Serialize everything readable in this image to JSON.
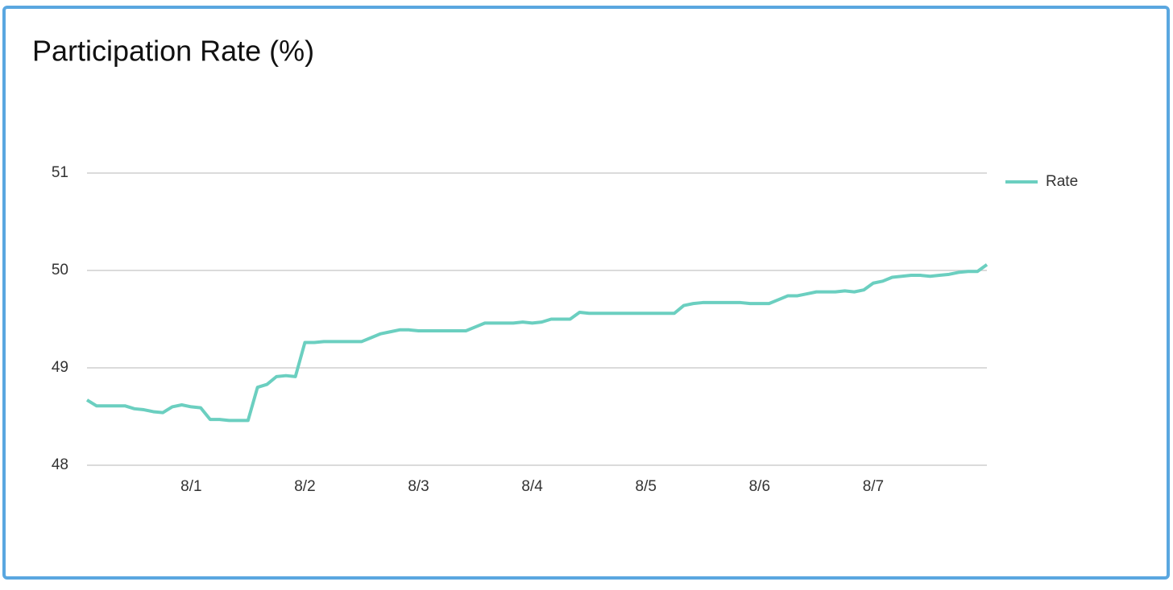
{
  "chart_data": {
    "type": "line",
    "title": "Participation Rate (%)",
    "categories": [
      null,
      null,
      null,
      null,
      null,
      null,
      null,
      null,
      null,
      null,
      null,
      "8/1",
      null,
      null,
      null,
      null,
      null,
      null,
      null,
      null,
      null,
      null,
      null,
      "8/2",
      null,
      null,
      null,
      null,
      null,
      null,
      null,
      null,
      null,
      null,
      null,
      "8/3",
      null,
      null,
      null,
      null,
      null,
      null,
      null,
      null,
      null,
      null,
      null,
      "8/4",
      null,
      null,
      null,
      null,
      null,
      null,
      null,
      null,
      null,
      null,
      null,
      "8/5",
      null,
      null,
      null,
      null,
      null,
      null,
      null,
      null,
      null,
      null,
      null,
      "8/6",
      null,
      null,
      null,
      null,
      null,
      null,
      null,
      null,
      null,
      null,
      null,
      "8/7",
      null,
      null,
      null,
      null,
      null,
      null,
      null,
      null,
      null,
      null,
      null,
      null
    ],
    "series": [
      {
        "name": "Rate",
        "color": "#6bcfc0",
        "values": [
          48.67,
          48.61,
          48.61,
          48.61,
          48.61,
          48.58,
          48.57,
          48.55,
          48.54,
          48.6,
          48.62,
          48.6,
          48.59,
          48.47,
          48.47,
          48.46,
          48.46,
          48.46,
          48.8,
          48.83,
          48.91,
          48.92,
          48.91,
          49.26,
          49.26,
          49.27,
          49.27,
          49.27,
          49.27,
          49.27,
          49.31,
          49.35,
          49.37,
          49.39,
          49.39,
          49.38,
          49.38,
          49.38,
          49.38,
          49.38,
          49.38,
          49.42,
          49.46,
          49.46,
          49.46,
          49.46,
          49.47,
          49.46,
          49.47,
          49.5,
          49.5,
          49.5,
          49.57,
          49.56,
          49.56,
          49.56,
          49.56,
          49.56,
          49.56,
          49.56,
          49.56,
          49.56,
          49.56,
          49.64,
          49.66,
          49.67,
          49.67,
          49.67,
          49.67,
          49.67,
          49.66,
          49.66,
          49.66,
          49.7,
          49.74,
          49.74,
          49.76,
          49.78,
          49.78,
          49.78,
          49.79,
          49.78,
          49.8,
          49.87,
          49.89,
          49.93,
          49.94,
          49.95,
          49.95,
          49.94,
          49.95,
          49.96,
          49.98,
          49.99,
          49.99,
          50.06
        ]
      }
    ],
    "ylim": [
      48,
      51
    ],
    "yticks": [
      48,
      49,
      50,
      51
    ],
    "grid": true,
    "legend": "right"
  }
}
